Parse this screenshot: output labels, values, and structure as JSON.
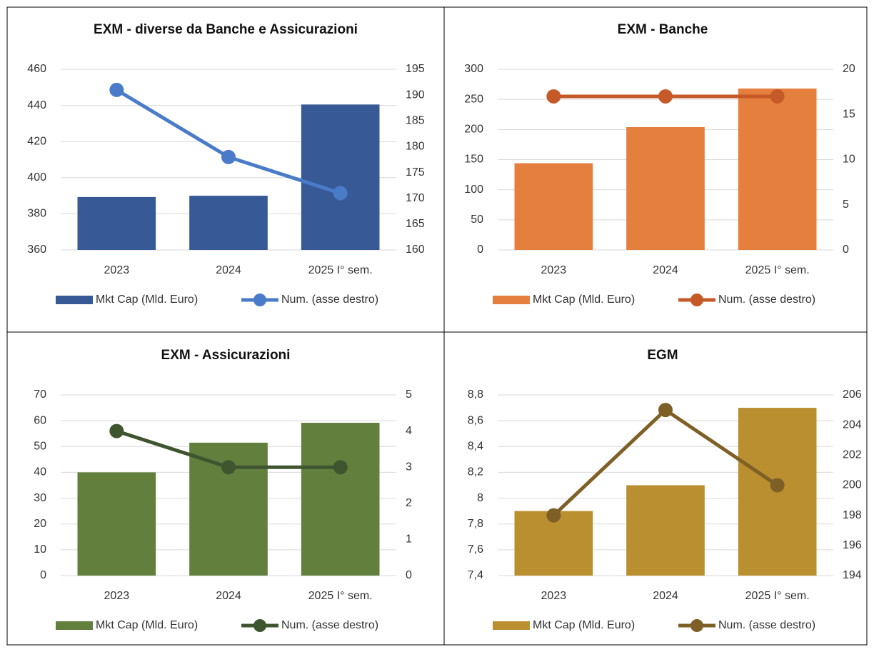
{
  "chart_data": [
    {
      "type": "combo",
      "title": "EXM - diverse da Banche e Assicurazioni",
      "categories": [
        "2023",
        "2024",
        "2025 I° sem."
      ],
      "ylim": [
        360,
        460
      ],
      "yticks": [
        360,
        380,
        400,
        420,
        440,
        460
      ],
      "y2lim": [
        160,
        195
      ],
      "y2ticks": [
        160,
        165,
        170,
        175,
        180,
        185,
        190,
        195
      ],
      "series": [
        {
          "name": "Mkt Cap (Mld. Euro)",
          "kind": "bar",
          "color": "#375a96",
          "values": [
            389.3,
            390,
            440.5
          ]
        },
        {
          "name": "Num. (asse destro)",
          "kind": "line",
          "axis": "y2",
          "color": "#4a7bc8",
          "values": [
            191,
            178,
            171
          ]
        }
      ]
    },
    {
      "type": "combo",
      "title": "EXM - Banche",
      "categories": [
        "2023",
        "2024",
        "2025 I° sem."
      ],
      "ylim": [
        0,
        300
      ],
      "yticks": [
        0,
        50,
        100,
        150,
        200,
        250,
        300
      ],
      "y2lim": [
        0,
        20
      ],
      "y2ticks": [
        0,
        5,
        10,
        15,
        20
      ],
      "series": [
        {
          "name": "Mkt Cap (Mld. Euro)",
          "kind": "bar",
          "color": "#e57f3e",
          "values": [
            144,
            204,
            268
          ]
        },
        {
          "name": "Num. (asse destro)",
          "kind": "line",
          "axis": "y2",
          "color": "#c55a28",
          "values": [
            17,
            17,
            17
          ]
        }
      ]
    },
    {
      "type": "combo",
      "title": "EXM - Assicurazioni",
      "categories": [
        "2023",
        "2024",
        "2025 I° sem."
      ],
      "ylim": [
        0,
        70
      ],
      "yticks": [
        0,
        10,
        20,
        30,
        40,
        50,
        60,
        70
      ],
      "y2lim": [
        0,
        5
      ],
      "y2ticks": [
        0,
        1,
        2,
        3,
        4,
        5
      ],
      "series": [
        {
          "name": "Mkt Cap (Mld. Euro)",
          "kind": "bar",
          "color": "#627f3e",
          "values": [
            40,
            51.5,
            59.2
          ]
        },
        {
          "name": "Num. (asse destro)",
          "kind": "line",
          "axis": "y2",
          "color": "#3f5530",
          "values": [
            4,
            3,
            3
          ]
        }
      ]
    },
    {
      "type": "combo",
      "title": "EGM",
      "categories": [
        "2023",
        "2024",
        "2025 I° sem."
      ],
      "ylim": [
        7.4,
        8.8
      ],
      "yticks": [
        {
          "value": 7.4,
          "label": "7,4"
        },
        {
          "value": 7.6,
          "label": "7,6"
        },
        {
          "value": 7.8,
          "label": "7,8"
        },
        8,
        {
          "value": 8.2,
          "label": "8,2"
        },
        {
          "value": 8.4,
          "label": "8,4"
        },
        {
          "value": 8.6,
          "label": "8,6"
        },
        {
          "value": 8.8,
          "label": "8,8"
        }
      ],
      "y2lim": [
        194,
        206
      ],
      "y2ticks": [
        194,
        196,
        198,
        200,
        202,
        204,
        206
      ],
      "series": [
        {
          "name": "Mkt Cap (Mld. Euro)",
          "kind": "bar",
          "color": "#ba8f30",
          "values": [
            7.9,
            8.1,
            8.7
          ]
        },
        {
          "name": "Num. (asse destro)",
          "kind": "line",
          "axis": "y2",
          "color": "#7e6027",
          "values": [
            198,
            205,
            200
          ]
        }
      ]
    }
  ]
}
